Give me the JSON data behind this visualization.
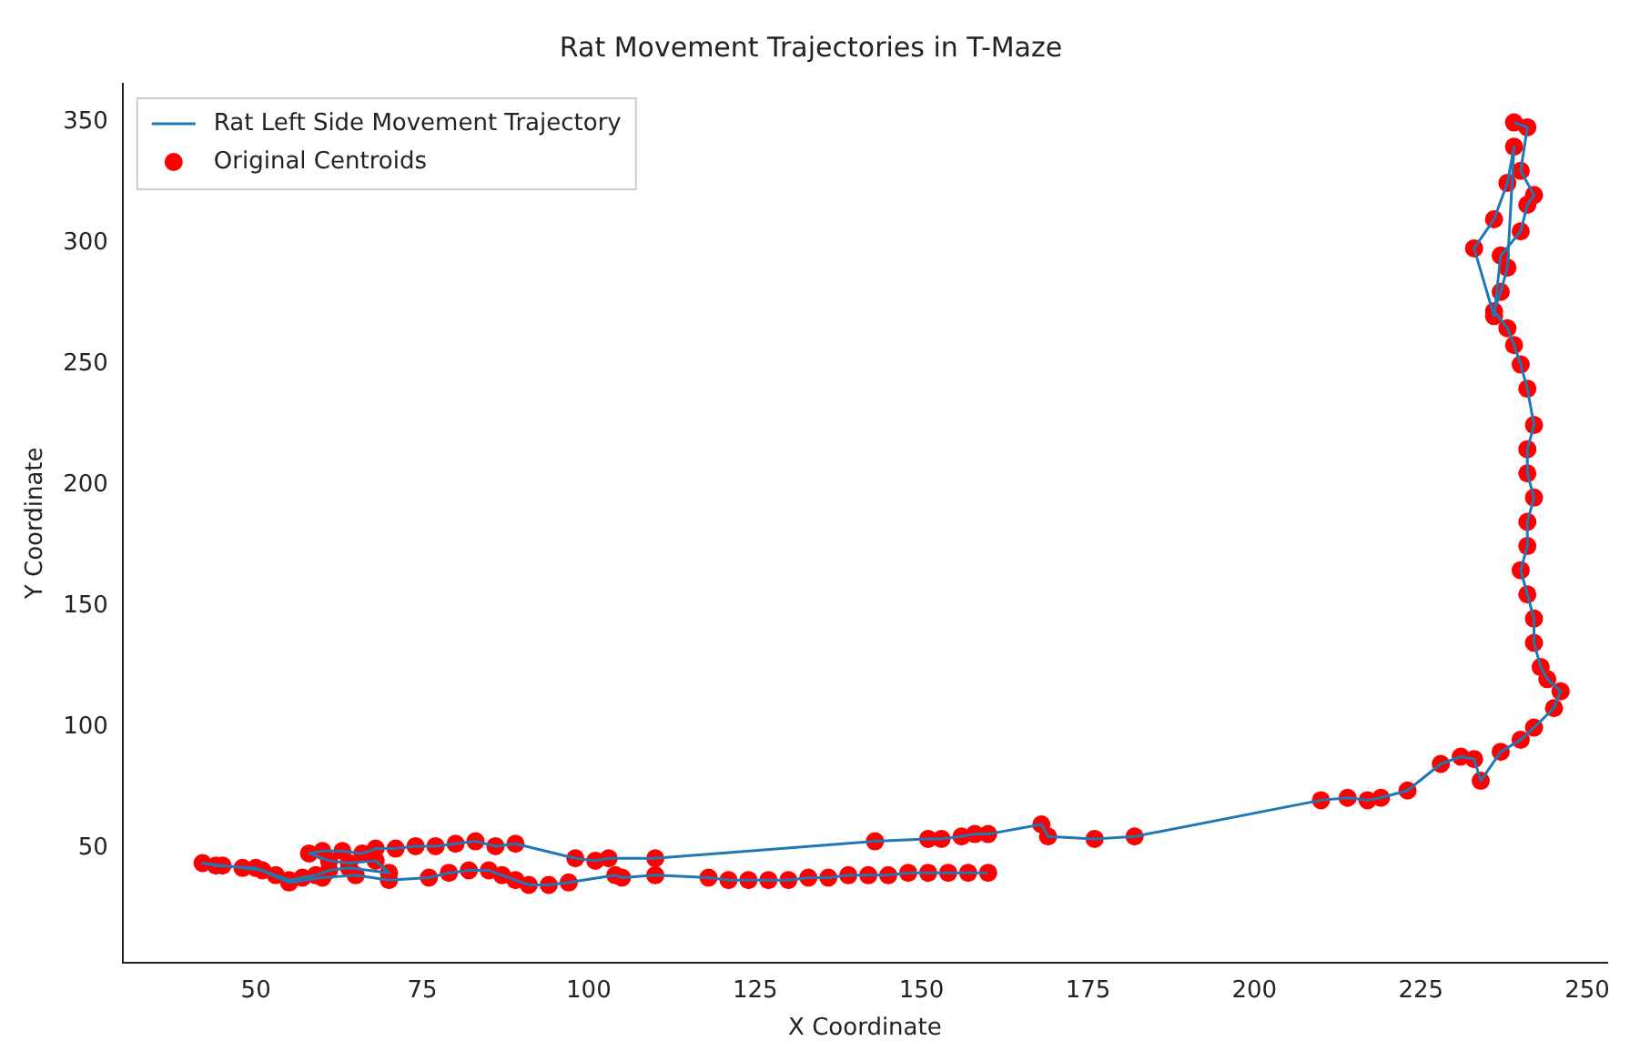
{
  "chart_data": {
    "type": "line",
    "title": "Rat Movement Trajectories in T-Maze",
    "xlabel": "X Coordinate",
    "ylabel": "Y Coordinate",
    "xlim": [
      30,
      253
    ],
    "ylim": [
      3,
      366
    ],
    "xticks": [
      50,
      75,
      100,
      125,
      150,
      175,
      200,
      225,
      250
    ],
    "yticks": [
      50,
      100,
      150,
      200,
      250,
      300,
      350
    ],
    "grid": false,
    "legend": "top left",
    "x": [
      239,
      241,
      240,
      242,
      241,
      240,
      237,
      236,
      233,
      236,
      238,
      239,
      238,
      237,
      236,
      238,
      239,
      240,
      241,
      242,
      241,
      241,
      242,
      241,
      241,
      240,
      241,
      242,
      242,
      243,
      244,
      246,
      245,
      242,
      240,
      237,
      234,
      233,
      231,
      228,
      223,
      219,
      217,
      214,
      210,
      182,
      176,
      169,
      168,
      160,
      158,
      156,
      153,
      151,
      143,
      110,
      103,
      101,
      98,
      89,
      86,
      83,
      80,
      77,
      74,
      71,
      68,
      66,
      63,
      60,
      58,
      61,
      64,
      68,
      70,
      64,
      61,
      59,
      57,
      55,
      53,
      51,
      48,
      45,
      42,
      44,
      50,
      55,
      60,
      65,
      70,
      76,
      79,
      82,
      85,
      87,
      89,
      91,
      94,
      97,
      104,
      105,
      110,
      118,
      121,
      124,
      127,
      130,
      133,
      136,
      139,
      142,
      145,
      148,
      151,
      154,
      157,
      160
    ],
    "series": [
      {
        "name": "Rat Left Side Movement Trajectory",
        "color": "#1f77b4",
        "marker": "none",
        "values": [
          350,
          348,
          330,
          320,
          316,
          305,
          295,
          270,
          298,
          310,
          325,
          340,
          290,
          280,
          272,
          265,
          258,
          250,
          240,
          225,
          215,
          205,
          195,
          185,
          175,
          165,
          155,
          145,
          135,
          125,
          120,
          115,
          108,
          100,
          95,
          90,
          78,
          87,
          88,
          85,
          74,
          71,
          70,
          71,
          70,
          55,
          54,
          55,
          60,
          56,
          56,
          55,
          54,
          54,
          53,
          46,
          46,
          45,
          46,
          52,
          51,
          53,
          52,
          51,
          51,
          50,
          50,
          48,
          49,
          49,
          48,
          45,
          44,
          45,
          40,
          42,
          41,
          39,
          38,
          37,
          39,
          41,
          42,
          43,
          44,
          43,
          42,
          36,
          38,
          39,
          37,
          38,
          40,
          41,
          41,
          39,
          37,
          35,
          35,
          36,
          39,
          38,
          39,
          38,
          37,
          37,
          37,
          37,
          38,
          38,
          39,
          39,
          39,
          40,
          40,
          40,
          40,
          40
        ]
      },
      {
        "name": "Original Centroids",
        "type": "scatter",
        "color": "#ff0000",
        "marker": "circle",
        "values": [
          350,
          348,
          330,
          320,
          316,
          305,
          295,
          270,
          298,
          310,
          325,
          340,
          290,
          280,
          272,
          265,
          258,
          250,
          240,
          225,
          215,
          205,
          195,
          185,
          175,
          165,
          155,
          145,
          135,
          125,
          120,
          115,
          108,
          100,
          95,
          90,
          78,
          87,
          88,
          85,
          74,
          71,
          70,
          71,
          70,
          55,
          54,
          55,
          60,
          56,
          56,
          55,
          54,
          54,
          53,
          46,
          46,
          45,
          46,
          52,
          51,
          53,
          52,
          51,
          51,
          50,
          50,
          48,
          49,
          49,
          48,
          45,
          44,
          45,
          40,
          42,
          41,
          39,
          38,
          37,
          39,
          41,
          42,
          43,
          44,
          43,
          42,
          36,
          38,
          39,
          37,
          38,
          40,
          41,
          41,
          39,
          37,
          35,
          35,
          36,
          39,
          38,
          39,
          38,
          37,
          37,
          37,
          37,
          38,
          38,
          39,
          39,
          39,
          40,
          40,
          40,
          40,
          40
        ]
      }
    ]
  }
}
